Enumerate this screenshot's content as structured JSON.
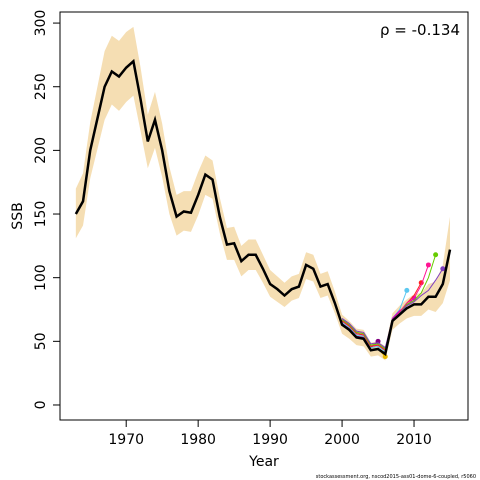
{
  "chart_data": {
    "type": "line",
    "x_label": "Year",
    "y_label": "SSB",
    "annotation": "ρ = -0.134",
    "footer": "stockassessment.org, nscod2015-ass01-dome-6-coupled, r5060",
    "x": [
      1963,
      1964,
      1965,
      1966,
      1967,
      1968,
      1969,
      1970,
      1971,
      1972,
      1973,
      1974,
      1975,
      1976,
      1977,
      1978,
      1979,
      1980,
      1981,
      1982,
      1983,
      1984,
      1985,
      1986,
      1987,
      1988,
      1989,
      1990,
      1991,
      1992,
      1993,
      1994,
      1995,
      1996,
      1997,
      1998,
      1999,
      2000,
      2001,
      2002,
      2003,
      2004,
      2005,
      2006,
      2007,
      2008,
      2009,
      2010,
      2011,
      2012,
      2013,
      2014,
      2015
    ],
    "series": [
      {
        "color": "#000000",
        "values": [
          150,
          160,
          200,
          225,
          250,
          262,
          258,
          265,
          270,
          240,
          207,
          224,
          200,
          168,
          148,
          152,
          151,
          165,
          181,
          177,
          148,
          126,
          127,
          113,
          118,
          118,
          107,
          95,
          91,
          86,
          91,
          93,
          110,
          107,
          93,
          95,
          80,
          63,
          59,
          53,
          52,
          43,
          44,
          40,
          66,
          71,
          76,
          79,
          79,
          85,
          85,
          95,
          122
        ]
      }
    ],
    "band": {
      "color": "#f5deb3",
      "upper": [
        170,
        182,
        222,
        250,
        278,
        290,
        286,
        293,
        297,
        265,
        228,
        246,
        221,
        187,
        165,
        168,
        168,
        183,
        196,
        192,
        163,
        139,
        140,
        125,
        130,
        130,
        118,
        106,
        101,
        96,
        101,
        103,
        120,
        118,
        103,
        105,
        89,
        71,
        66,
        60,
        59,
        49,
        50,
        46,
        72,
        78,
        83,
        87,
        88,
        95,
        97,
        110,
        148
      ],
      "lower": [
        131,
        141,
        178,
        201,
        224,
        236,
        231,
        238,
        243,
        215,
        186,
        202,
        179,
        150,
        133,
        137,
        136,
        149,
        165,
        162,
        135,
        114,
        114,
        101,
        106,
        106,
        96,
        85,
        81,
        77,
        82,
        84,
        99,
        97,
        84,
        86,
        72,
        56,
        52,
        47,
        46,
        38,
        39,
        35,
        59,
        64,
        68,
        70,
        70,
        75,
        73,
        80,
        98
      ]
    },
    "peels": [
      {
        "color": "#800080",
        "x": [
          2000,
          2001,
          2002,
          2003,
          2004,
          2005
        ],
        "values": [
          64,
          60,
          54,
          53,
          45,
          50
        ]
      },
      {
        "color": "#e6b800",
        "x": [
          2000,
          2001,
          2002,
          2003,
          2004,
          2005,
          2006
        ],
        "values": [
          63,
          59,
          53,
          52,
          43,
          44,
          38
        ]
      },
      {
        "color": "#5bc8f0",
        "x": [
          2000,
          2001,
          2002,
          2003,
          2004,
          2005,
          2006,
          2007,
          2008,
          2009
        ],
        "values": [
          65,
          61,
          55,
          54,
          45,
          46,
          42,
          68,
          75,
          90
        ]
      },
      {
        "color": "#cc00cc",
        "x": [
          2000,
          2001,
          2002,
          2003,
          2004,
          2005,
          2006,
          2007,
          2008,
          2009,
          2010
        ],
        "values": [
          66,
          62,
          56,
          55,
          46,
          47,
          43,
          68,
          74,
          78,
          84
        ]
      },
      {
        "color": "#ff2020",
        "x": [
          2000,
          2001,
          2002,
          2003,
          2004,
          2005,
          2006,
          2007,
          2008,
          2009,
          2010,
          2011
        ],
        "values": [
          66,
          62,
          56,
          55,
          46,
          47,
          43,
          67,
          73,
          80,
          86,
          96
        ]
      },
      {
        "color": "#ff1493",
        "x": [
          2000,
          2001,
          2002,
          2003,
          2004,
          2005,
          2006,
          2007,
          2008,
          2009,
          2010,
          2011,
          2012
        ],
        "values": [
          67,
          63,
          57,
          56,
          47,
          48,
          44,
          67,
          73,
          80,
          84,
          94,
          110
        ]
      },
      {
        "color": "#66cc00",
        "x": [
          2000,
          2001,
          2002,
          2003,
          2004,
          2005,
          2006,
          2007,
          2008,
          2009,
          2010,
          2011,
          2012,
          2013
        ],
        "values": [
          67,
          63,
          57,
          56,
          47,
          48,
          44,
          67,
          72,
          79,
          82,
          88,
          100,
          118
        ]
      },
      {
        "color": "#7f3fbf",
        "x": [
          2000,
          2001,
          2002,
          2003,
          2004,
          2005,
          2006,
          2007,
          2008,
          2009,
          2010,
          2011,
          2012,
          2013,
          2014
        ],
        "values": [
          68,
          64,
          58,
          57,
          48,
          49,
          45,
          67,
          72,
          78,
          81,
          86,
          90,
          98,
          107
        ]
      }
    ],
    "xlim": [
      1960.8,
      2017.5
    ],
    "ylim": [
      -11.8,
      308.7
    ],
    "xticks": [
      1970,
      1980,
      1990,
      2000,
      2010
    ],
    "yticks": [
      0,
      50,
      100,
      150,
      200,
      250,
      300
    ]
  }
}
